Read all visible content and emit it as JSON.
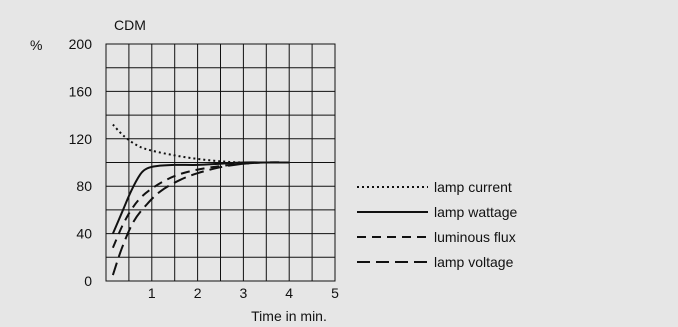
{
  "chart_data": {
    "type": "line",
    "title": "CDM",
    "xlabel": "Time in min.",
    "ylabel": "%",
    "xlim": [
      0,
      5
    ],
    "ylim": [
      0,
      200
    ],
    "x_ticks": [
      "1",
      "2",
      "3",
      "4",
      "5"
    ],
    "y_ticks": [
      "0",
      "40",
      "80",
      "120",
      "160",
      "200"
    ],
    "grid": true,
    "legend_position": "right",
    "series": [
      {
        "name": "lamp current",
        "style": "dotted",
        "x": [
          0.15,
          0.4,
          0.7,
          1.0,
          1.5,
          2.0,
          2.5,
          3.0,
          3.5,
          4.0
        ],
        "y": [
          132,
          122,
          114,
          110,
          106,
          103,
          101,
          100,
          100,
          100
        ]
      },
      {
        "name": "lamp wattage",
        "style": "solid",
        "x": [
          0.15,
          0.35,
          0.55,
          0.75,
          0.9,
          1.1,
          1.5,
          2.0,
          2.5,
          3.0,
          3.5,
          4.0
        ],
        "y": [
          40,
          58,
          76,
          90,
          95,
          97,
          98,
          98,
          99,
          100,
          100,
          100
        ]
      },
      {
        "name": "luminous flux",
        "style": "dashed",
        "x": [
          0.15,
          0.35,
          0.55,
          0.75,
          1.0,
          1.3,
          1.6,
          2.0,
          2.5,
          3.0,
          3.5,
          4.0
        ],
        "y": [
          28,
          46,
          60,
          70,
          78,
          85,
          90,
          94,
          97,
          99,
          100,
          100
        ]
      },
      {
        "name": "lamp voltage",
        "style": "longdash",
        "x": [
          0.15,
          0.35,
          0.6,
          0.9,
          1.2,
          1.6,
          2.0,
          2.5,
          3.0,
          3.5,
          4.0
        ],
        "y": [
          5,
          28,
          50,
          65,
          76,
          85,
          91,
          96,
          99,
          100,
          100
        ]
      }
    ]
  }
}
